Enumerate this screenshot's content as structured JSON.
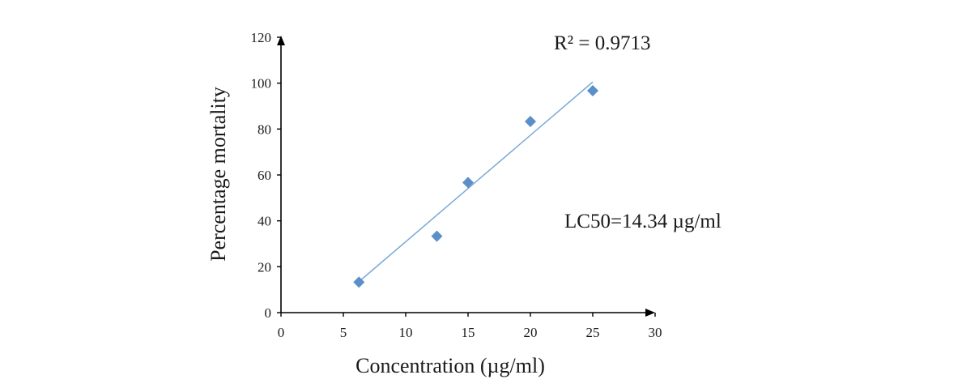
{
  "chart_data": {
    "type": "scatter",
    "xlabel": "Concentration (µg/ml)",
    "ylabel": "Percentage mortality",
    "xlim": [
      0,
      30
    ],
    "ylim": [
      0,
      120
    ],
    "x_ticks": [
      0,
      5,
      10,
      15,
      20,
      25,
      30
    ],
    "y_ticks": [
      0,
      20,
      40,
      60,
      80,
      100,
      120
    ],
    "grid": false,
    "marker": "diamond",
    "point_color": "#5b8fc9",
    "trendline_color": "#7aa9d6",
    "series": [
      {
        "points": [
          {
            "x": 6.25,
            "y": 13.3
          },
          {
            "x": 12.5,
            "y": 33.3
          },
          {
            "x": 15,
            "y": 56.7
          },
          {
            "x": 20,
            "y": 83.3
          },
          {
            "x": 25,
            "y": 96.7
          }
        ]
      }
    ],
    "trendline": {
      "x": [
        6.25,
        25
      ],
      "y": [
        13.5,
        100.5
      ]
    },
    "annotations": {
      "r_squared": "R² = 0.9713",
      "lc50": "LC50=14.34 µg/ml"
    }
  }
}
